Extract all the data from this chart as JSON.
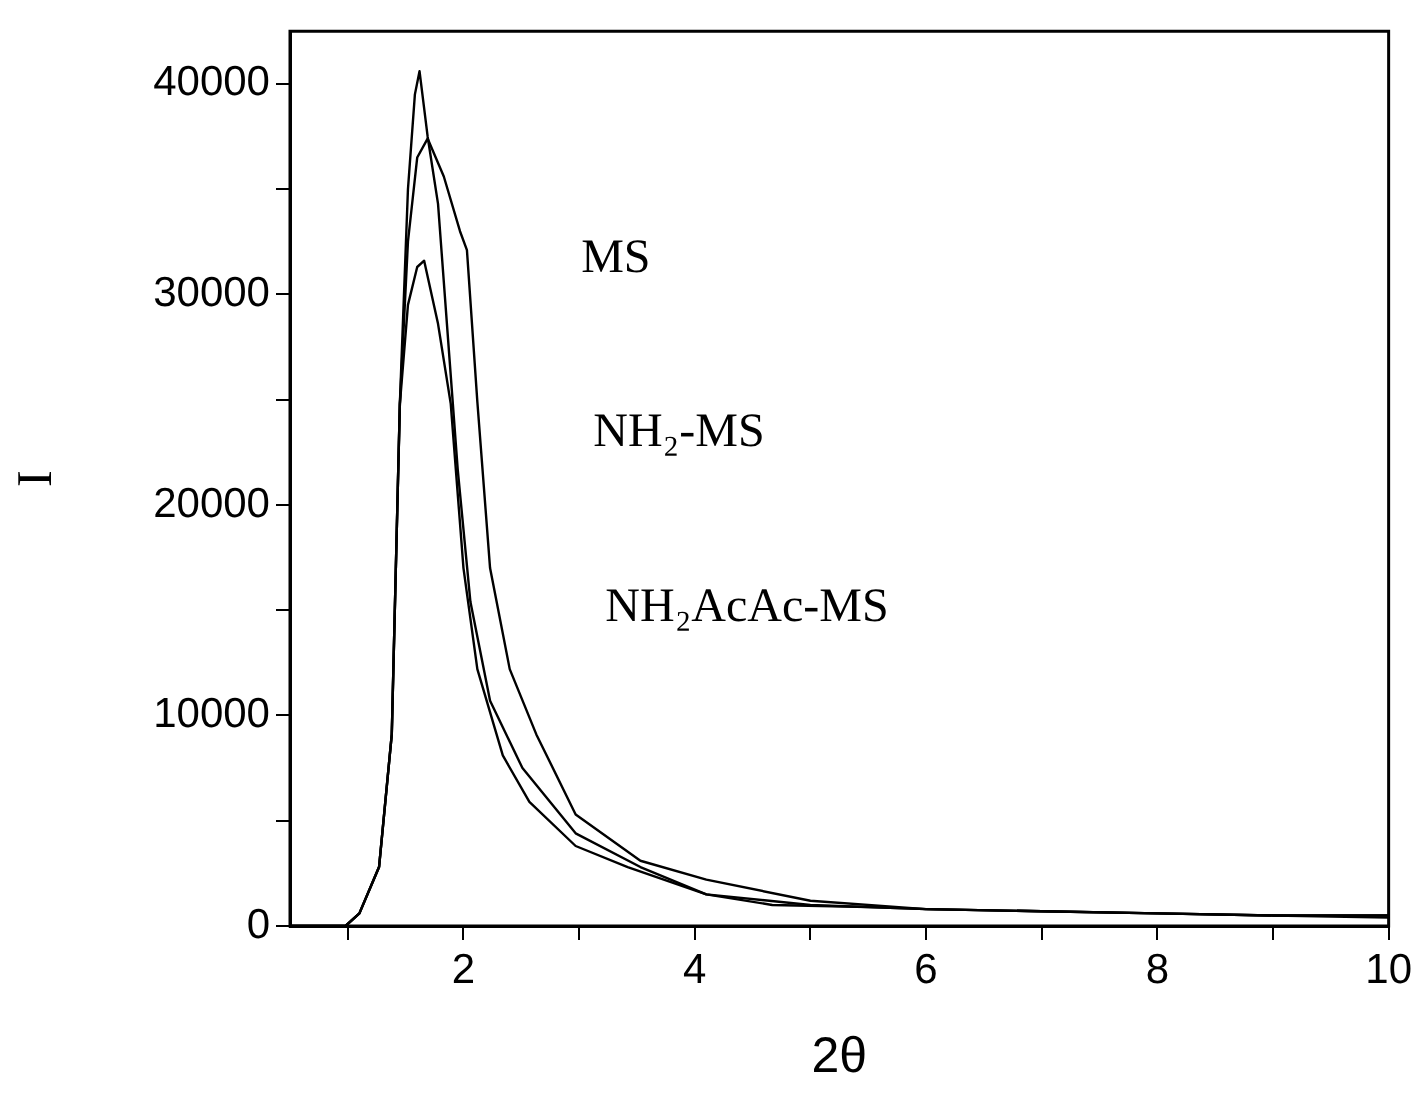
{
  "chart_data": {
    "type": "line",
    "xlabel": "2θ",
    "ylabel": "I",
    "xlim": [
      0.5,
      10
    ],
    "ylim": [
      0,
      42500
    ],
    "xticks": [
      {
        "value": 1,
        "label": null
      },
      2,
      {
        "value": 3,
        "label": null
      },
      4,
      {
        "value": 5,
        "label": null
      },
      6,
      {
        "value": 7,
        "label": null
      },
      8,
      {
        "value": 9,
        "label": null
      },
      10
    ],
    "yticks": [
      0,
      {
        "value": 5000,
        "label": null
      },
      10000,
      {
        "value": 15000,
        "label": null
      },
      20000,
      {
        "value": 25000,
        "label": null
      },
      30000,
      {
        "value": 35000,
        "label": null
      },
      40000
    ],
    "marker": "none",
    "line_style": "solid",
    "series": [
      {
        "color": "#000000",
        "x": [
          0.5,
          0.98,
          1.1,
          1.27,
          1.38,
          1.45,
          1.52,
          1.58,
          1.62,
          1.69,
          1.78,
          1.95,
          2.06,
          2.23,
          2.51,
          2.97,
          3.53,
          4.1,
          5.0,
          6.0,
          7.0,
          8.0,
          9.0,
          10.0
        ],
        "values": [
          0,
          0,
          600,
          2800,
          9100,
          24800,
          35000,
          39500,
          40600,
          37500,
          34300,
          21700,
          15400,
          10700,
          7500,
          4400,
          2800,
          1500,
          1000,
          800,
          700,
          600,
          500,
          500
        ]
      },
      {
        "color": "#000000",
        "x": [
          0.5,
          0.98,
          1.1,
          1.27,
          1.38,
          1.45,
          1.52,
          1.6,
          1.69,
          1.83,
          1.97,
          2.03,
          2.12,
          2.23,
          2.4,
          2.63,
          2.97,
          3.53,
          4.1,
          5.0,
          6.0,
          7.0,
          8.0,
          9.0,
          10.0
        ],
        "values": [
          0,
          0,
          600,
          2800,
          9100,
          24800,
          32500,
          36500,
          37400,
          35600,
          33000,
          32100,
          24900,
          17000,
          12200,
          9100,
          5300,
          3100,
          2200,
          1200,
          800,
          700,
          600,
          500,
          500
        ]
      },
      {
        "color": "#000000",
        "x": [
          0.5,
          0.98,
          1.1,
          1.27,
          1.38,
          1.45,
          1.52,
          1.6,
          1.66,
          1.78,
          1.89,
          2.0,
          2.12,
          2.34,
          2.57,
          2.97,
          3.42,
          4.1,
          4.67,
          5.5,
          6.0,
          7.0,
          8.0,
          9.0,
          10.0
        ],
        "values": [
          0,
          0,
          600,
          2800,
          9100,
          24800,
          29500,
          31300,
          31600,
          28600,
          24800,
          17000,
          12200,
          8100,
          5900,
          3800,
          2800,
          1500,
          1000,
          900,
          800,
          700,
          600,
          500,
          400
        ]
      }
    ],
    "annotations": [
      "MS",
      "NH₂-MS",
      "NH₂AcAc-MS"
    ]
  }
}
